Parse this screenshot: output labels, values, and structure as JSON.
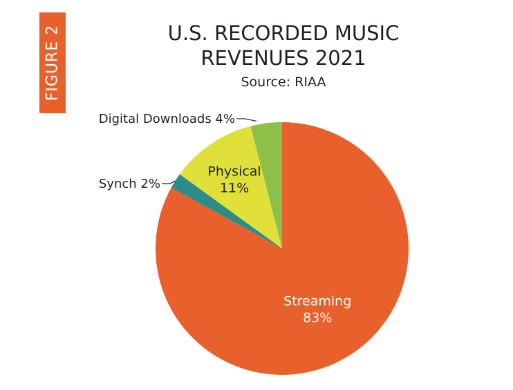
{
  "figure_label": "FIGURE 2",
  "chart_data": {
    "type": "pie",
    "title": "U.S. RECORDED MUSIC",
    "title_line2": "REVENUES 2021",
    "subtitle": "Source: RIAA",
    "slices": [
      {
        "label": "Streaming",
        "value": 83,
        "value_label": "83%",
        "color": "#e8602c",
        "label_position": "inside"
      },
      {
        "label": "Synch 2%",
        "value": 2,
        "value_label": "",
        "color": "#2d8c88",
        "label_position": "outside-left"
      },
      {
        "label": "Physical",
        "value": 11,
        "value_label": "11%",
        "color": "#dfe03a",
        "label_position": "inside"
      },
      {
        "label": "Digital Downloads 4%",
        "value": 4,
        "value_label": "",
        "color": "#8dc04b",
        "label_position": "outside-top"
      }
    ]
  }
}
